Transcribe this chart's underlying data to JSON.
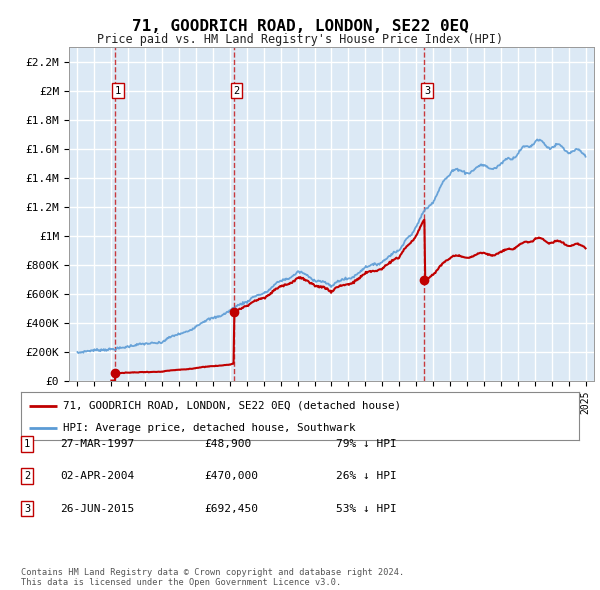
{
  "title": "71, GOODRICH ROAD, LONDON, SE22 0EQ",
  "subtitle": "Price paid vs. HM Land Registry's House Price Index (HPI)",
  "background_color": "#dce9f5",
  "grid_color": "#ffffff",
  "hpi_color": "#5b9bd5",
  "price_color": "#c00000",
  "transactions": [
    {
      "label": "1",
      "date": "27-MAR-1997",
      "price": 48900,
      "year": 1997.23,
      "pct": "79% ↓ HPI"
    },
    {
      "label": "2",
      "date": "02-APR-2004",
      "price": 470000,
      "year": 2004.25,
      "pct": "26% ↓ HPI"
    },
    {
      "label": "3",
      "date": "26-JUN-2015",
      "price": 692450,
      "year": 2015.49,
      "pct": "53% ↓ HPI"
    }
  ],
  "legend_entries": [
    "71, GOODRICH ROAD, LONDON, SE22 0EQ (detached house)",
    "HPI: Average price, detached house, Southwark"
  ],
  "footer": "Contains HM Land Registry data © Crown copyright and database right 2024.\nThis data is licensed under the Open Government Licence v3.0.",
  "ylim": [
    0,
    2300000
  ],
  "xlim": [
    1994.5,
    2025.5
  ],
  "yticks": [
    0,
    200000,
    400000,
    600000,
    800000,
    1000000,
    1200000,
    1400000,
    1600000,
    1800000,
    2000000,
    2200000
  ],
  "ytick_labels": [
    "£0",
    "£200K",
    "£400K",
    "£600K",
    "£800K",
    "£1M",
    "£1.2M",
    "£1.4M",
    "£1.6M",
    "£1.8M",
    "£2M",
    "£2.2M"
  ]
}
